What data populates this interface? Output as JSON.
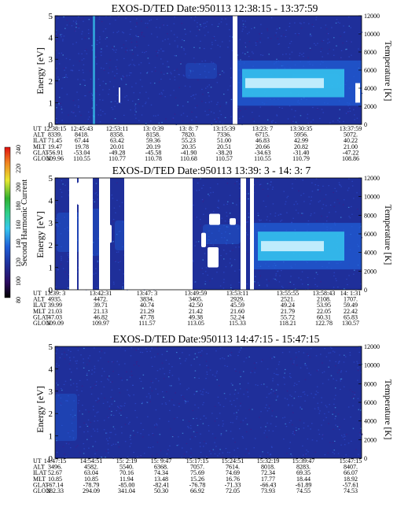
{
  "colors": {
    "background": "#1f2f9a",
    "mid": "#1f5fd8",
    "hot": "#36c7ee",
    "core": "#d8f6ff",
    "gap": "#ffffff"
  },
  "colorbar": {
    "label": "Second Harmonic Current",
    "ticks": [
      "240",
      "220",
      "200",
      "180",
      "160",
      "140",
      "120",
      "100",
      "80"
    ]
  },
  "chart_data": [
    {
      "type": "heatmap",
      "title": "EXOS-D/TED  Date:950113  12:38:15 - 13:37:59",
      "ylabel": "Energy [eV]",
      "y2label": "Temperature [K]",
      "ylim": [
        0,
        5
      ],
      "y2lim": [
        0,
        12000
      ],
      "yticks": [
        "0",
        "1",
        "2",
        "3",
        "4",
        "5"
      ],
      "y2ticks": [
        "0",
        "2000",
        "4000",
        "6000",
        "8000",
        "10000",
        "12000"
      ],
      "table": {
        "labels": [
          "UT",
          "ALT",
          "ILAT",
          "MLT",
          "GLAT",
          "GLON"
        ],
        "columns": [
          [
            "12:38:15",
            "8339.",
            "71.45",
            "19.47",
            "-56.91",
            "109.96"
          ],
          [
            "12:45:43",
            "8418.",
            "67.44",
            "19.78",
            "-53.04",
            "110.55"
          ],
          [
            "12:53:11",
            "8358.",
            "63.42",
            "20.01",
            "-49.28",
            "110.77"
          ],
          [
            "13: 0:39",
            "8158.",
            "59.36",
            "20.19",
            "-45.58",
            "110.78"
          ],
          [
            "13: 8: 7",
            "7820.",
            "55.23",
            "20.35",
            "-41.90",
            "110.68"
          ],
          [
            "13:15:39",
            "7336.",
            "51.00",
            "20.51",
            "-38.20",
            "110.57"
          ],
          [
            "13:23: 7",
            "6715.",
            "46.83",
            "20.66",
            "-34.63",
            "110.55"
          ],
          [
            "13:30:35",
            "5956.",
            "42.99",
            "20.82",
            "-31.40",
            "110.79"
          ],
          [
            "13:37:59",
            "5072.",
            "40.22",
            "21.00",
            "-47.22",
            "108.86"
          ]
        ]
      }
    },
    {
      "type": "heatmap",
      "title": "EXOS-D/TED   Date:950113   13:39: 3 - 14: 3: 7",
      "ylabel": "Energy [eV]",
      "y2label": "Temperature [K]",
      "ylim": [
        0,
        5
      ],
      "y2lim": [
        0,
        12000
      ],
      "yticks": [
        "0",
        "1",
        "2",
        "3",
        "4",
        "5"
      ],
      "y2ticks": [
        "0",
        "2000",
        "4000",
        "6000",
        "8000",
        "10000",
        "12000"
      ],
      "table": {
        "labels": [
          "UT",
          "ALT",
          "ILAT",
          "MLT",
          "GLAT",
          "GLON"
        ],
        "columns": [
          [
            "13:39: 3",
            "4935.",
            "39.99",
            "21.03",
            "47.03",
            "109.09"
          ],
          [
            "13:42:31",
            "4472.",
            "39.71",
            "21.13",
            "46.82",
            "109.97"
          ],
          [
            "13:47: 3",
            "3834.",
            "40.74",
            "21.29",
            "47.78",
            "111.57"
          ],
          [
            "13:49:59",
            "3405.",
            "42.50",
            "21.42",
            "49.38",
            "113.05"
          ],
          [
            "13:53:11",
            "2929.",
            "45.59",
            "21.60",
            "52.24",
            "115.33"
          ],
          [
            "13:55:55",
            "2521.",
            "49.24",
            "21.79",
            "55.72",
            "118.21"
          ],
          [
            "13:58:43",
            "2108.",
            "53.95",
            "22.05",
            "60.31",
            "122.78"
          ],
          [
            "14: 1:31",
            "1707.",
            "59.49",
            "22.42",
            "65.83",
            "130.57"
          ]
        ]
      }
    },
    {
      "type": "heatmap",
      "title": "EXOS-D/TED  Date:950113  14:47:15 - 15:47:15",
      "ylabel": "Energy [eV]",
      "y2label": "Temperature [K]",
      "ylim": [
        0,
        5
      ],
      "y2lim": [
        0,
        12000
      ],
      "yticks": [
        "0",
        "1",
        "2",
        "3",
        "4",
        "5"
      ],
      "y2ticks": [
        "0",
        "2000",
        "4000",
        "6000",
        "8000",
        "10000",
        "12000"
      ],
      "table": {
        "labels": [
          "UT",
          "ALT",
          "ILAT",
          "MLT",
          "GLAT",
          "GLON"
        ],
        "columns": [
          [
            "14:47:15",
            "3496.",
            "52.67",
            "10.85",
            "-67.14",
            "282.33"
          ],
          [
            "14:54:51",
            "4582.",
            "63.04",
            "10.85",
            "-78.79",
            "294.09"
          ],
          [
            "15: 2:19",
            "5540.",
            "70.16",
            "11.94",
            "-85.00",
            "341.04"
          ],
          [
            "15: 9:47",
            "6368.",
            "74.34",
            "13.48",
            "-82.41",
            "50.30"
          ],
          [
            "15:17:15",
            "7057.",
            "75.69",
            "15.26",
            "-76.78",
            "66.92"
          ],
          [
            "15:24:51",
            "7614.",
            "74.69",
            "16.76",
            "-71.33",
            "72.05"
          ],
          [
            "15:32:19",
            "8018.",
            "72.34",
            "17.77",
            "-66.43",
            "73.93"
          ],
          [
            "15:39:47",
            "8283.",
            "69.35",
            "18.44",
            "-61.89",
            "74.55"
          ],
          [
            "15:47:15",
            "8407.",
            "66.07",
            "18.92",
            "-57.61",
            "74.53"
          ]
        ]
      }
    }
  ]
}
